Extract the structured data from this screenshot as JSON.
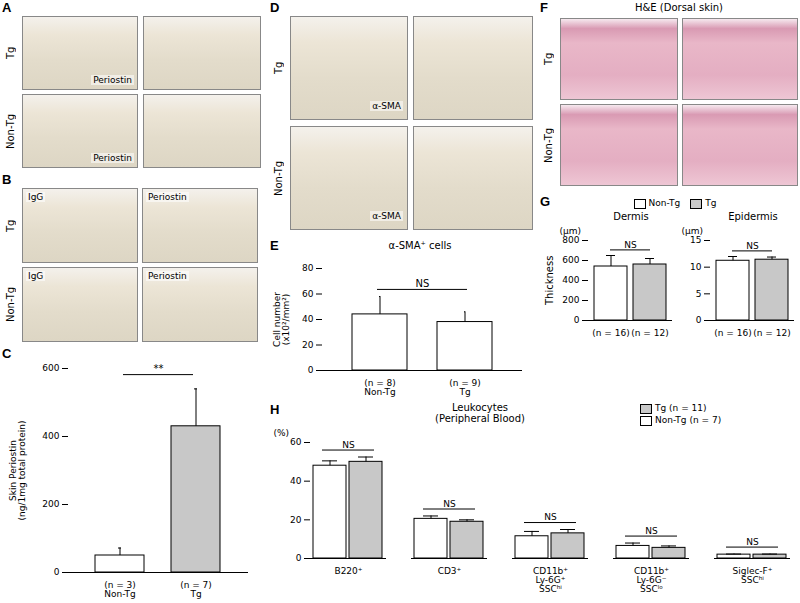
{
  "panels": [
    {
      "letter": "A",
      "rows": [
        {
          "label": "Tg",
          "stain": "Periostin"
        },
        {
          "label": "Non-Tg",
          "stain": "Periostin"
        }
      ]
    },
    {
      "letter": "B",
      "rows": [
        "Tg",
        "Non-Tg"
      ],
      "columns": [
        "IgG",
        "Periostin"
      ]
    },
    {
      "letter": "D",
      "rows": [
        {
          "label": "Tg",
          "stain": "α-SMA"
        },
        {
          "label": "Non-Tg",
          "stain": "α-SMA"
        }
      ]
    },
    {
      "letter": "F",
      "title": "H&E (Dorsal skin)",
      "rows": [
        "Tg",
        "Non-Tg"
      ]
    }
  ],
  "chart_data": [
    {
      "panel": "C",
      "type": "bar",
      "categories": [
        "Non-Tg",
        "Tg"
      ],
      "n_labels": [
        "(n = 3)",
        "(n = 7)"
      ],
      "values": [
        50,
        430
      ],
      "errors": [
        22,
        110
      ],
      "colors": [
        "#ffffff",
        "#c8c8c8"
      ],
      "ylabel": "Skin Periostin\n(ng/1mg total protein)",
      "ylim": [
        0,
        600
      ],
      "yticks": [
        0,
        200,
        400,
        600
      ],
      "significance": "**"
    },
    {
      "panel": "E",
      "type": "bar",
      "title": "α-SMA⁺ cells",
      "categories": [
        "Non-Tg",
        "Tg"
      ],
      "n_labels": [
        "(n = 8)",
        "(n = 9)"
      ],
      "values": [
        44,
        38
      ],
      "errors": [
        14,
        8
      ],
      "colors": [
        "#ffffff",
        "#ffffff"
      ],
      "ylabel": "Cell number\n(x10²/mm²)",
      "ylim": [
        0,
        80
      ],
      "yticks": [
        0,
        20,
        40,
        60,
        80
      ],
      "significance": "NS"
    },
    {
      "panel": "G",
      "type": "bar",
      "ylabel": "Thickness",
      "legend": "top",
      "series": [
        {
          "name": "Non-Tg",
          "color": "#ffffff"
        },
        {
          "name": "Tg",
          "color": "#c8c8c8"
        }
      ],
      "subplots": [
        {
          "title": "Dermis",
          "unit": "(μm)",
          "values": [
            540,
            560
          ],
          "errors": [
            110,
            60
          ],
          "n_labels": [
            "(n = 16)",
            "(n = 12)"
          ],
          "ylim": [
            0,
            800
          ],
          "yticks": [
            0,
            200,
            400,
            600,
            800
          ],
          "significance": "NS"
        },
        {
          "title": "Epidermis",
          "unit": "(μm)",
          "values": [
            11.2,
            11.4
          ],
          "errors": [
            0.8,
            0.5
          ],
          "n_labels": [
            "(n = 16)",
            "(n = 12)"
          ],
          "ylim": [
            0,
            15
          ],
          "yticks": [
            0,
            5,
            10,
            15
          ],
          "significance": "NS"
        }
      ]
    },
    {
      "panel": "H",
      "type": "bar",
      "title": "Leukocytes\n(Peripheral Blood)",
      "ylabel": "(%)",
      "legend": "top-right",
      "categories": [
        "B220⁺",
        "CD3⁺",
        "CD11b⁺\nLy-6G⁺\nSSCʰⁱ",
        "CD11b⁺\nLy-6G⁻\nSSCˡᵒ",
        "Siglec-F⁺\nSSCʰⁱ"
      ],
      "series": [
        {
          "name": "Non-Tg",
          "n_label": "(n = 7)",
          "color": "#ffffff",
          "values": [
            48,
            20.5,
            11.5,
            6.5,
            2
          ],
          "errors": [
            2.5,
            1.5,
            2.5,
            1.5,
            0.3
          ]
        },
        {
          "name": "Tg",
          "n_label": "(n = 11)",
          "color": "#c8c8c8",
          "values": [
            50,
            19,
            13,
            5.5,
            2
          ],
          "errors": [
            2.5,
            1,
            2,
            1,
            0.3
          ]
        }
      ],
      "ylim": [
        0,
        60
      ],
      "yticks": [
        0,
        20,
        40,
        60
      ],
      "significance": "NS"
    }
  ]
}
